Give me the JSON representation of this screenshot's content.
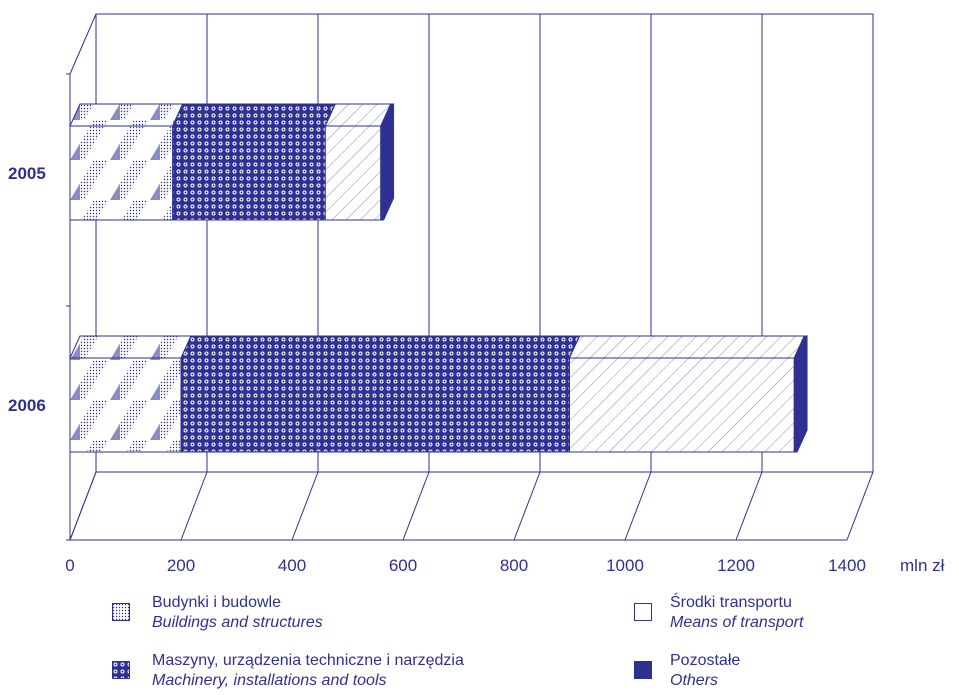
{
  "chart_data": {
    "type": "bar",
    "orientation": "horizontal",
    "stacked": true,
    "style": "3d",
    "categories": [
      "2005",
      "2006"
    ],
    "series": [
      {
        "name": "Budynki i budowle",
        "name_en": "Buildings and structures",
        "values": [
          185,
          200
        ],
        "pattern": "dots-diagonal"
      },
      {
        "name": "Maszyny, urządzenia techniczne i narzędzia",
        "name_en": "Machinery, installations and tools",
        "values": [
          275,
          700
        ],
        "pattern": "circles"
      },
      {
        "name": "Środki transportu",
        "name_en": "Means of transport",
        "values": [
          100,
          405
        ],
        "pattern": "hatch"
      },
      {
        "name": "Pozostałe",
        "name_en": "Others",
        "values": [
          5,
          5
        ],
        "pattern": "solid"
      }
    ],
    "xlim": [
      0,
      1400
    ],
    "xticks": [
      "0",
      "200",
      "400",
      "600",
      "800",
      "1000",
      "1200",
      "1400"
    ],
    "xunit": "mln zł",
    "grid": true,
    "legend_position": "bottom",
    "colors": {
      "primary": "#2e3192",
      "background": "#ffffff"
    }
  }
}
